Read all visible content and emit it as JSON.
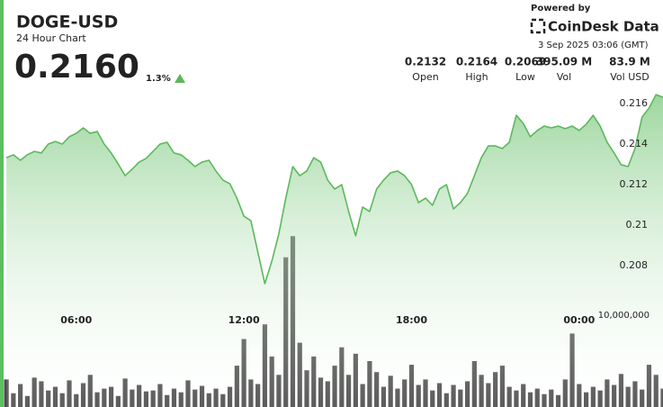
{
  "header": {
    "symbol": "DOGE-USD",
    "subtitle": "24 Hour Chart",
    "price": "0.2160",
    "change": "1.3%",
    "powered_by": "Powered by",
    "brand": "CoinDesk Data",
    "timestamp": "3 Sep 2025 03:06 (GMT)",
    "stats": [
      {
        "value": "0.2132",
        "label": "Open"
      },
      {
        "value": "0.2164",
        "label": "High"
      },
      {
        "value": "0.2069",
        "label": "Low"
      },
      {
        "value": "395.09 M",
        "label": "Vol"
      },
      {
        "value": "83.9 M",
        "label": "Vol USD"
      }
    ]
  },
  "chart_data": {
    "type": "line",
    "x": [
      3.5,
      3.75,
      4,
      4.25,
      4.5,
      4.75,
      5,
      5.25,
      5.5,
      5.75,
      6,
      6.25,
      6.5,
      6.75,
      7,
      7.25,
      7.5,
      7.75,
      8,
      8.25,
      8.5,
      8.75,
      9,
      9.25,
      9.5,
      9.75,
      10,
      10.25,
      10.5,
      10.75,
      11,
      11.25,
      11.5,
      11.75,
      12,
      12.25,
      12.5,
      12.75,
      13,
      13.25,
      13.5,
      13.75,
      14,
      14.25,
      14.5,
      14.75,
      15,
      15.25,
      15.5,
      15.75,
      16,
      16.25,
      16.5,
      16.75,
      17,
      17.25,
      17.5,
      17.75,
      18,
      18.25,
      18.5,
      18.75,
      19,
      19.25,
      19.5,
      19.75,
      20,
      20.25,
      20.5,
      20.75,
      21,
      21.25,
      21.5,
      21.75,
      22,
      22.25,
      22.5,
      22.75,
      23,
      23.25,
      23.5,
      23.75,
      24,
      24.25,
      24.5,
      24.75,
      25,
      25.25,
      25.5,
      25.75,
      26,
      26.25,
      26.5,
      26.75,
      27
    ],
    "xlim": [
      3.4,
      27
    ],
    "xticks": [
      {
        "value": 6,
        "label": "06:00"
      },
      {
        "value": 12,
        "label": "12:00"
      },
      {
        "value": 18,
        "label": "18:00"
      },
      {
        "value": 24,
        "label": "00:00"
      }
    ],
    "ylim": [
      0.201,
      0.217
    ],
    "yticks": [
      0.208,
      0.21,
      0.212,
      0.214,
      0.216
    ],
    "y2lim": [
      0,
      20000000
    ],
    "y2ticks": [
      {
        "value": 10000000,
        "label": "10,000,000"
      }
    ],
    "series": [
      {
        "color": "#5cb85c",
        "values": [
          0.21333,
          0.21347,
          0.2132,
          0.21347,
          0.21364,
          0.21356,
          0.214,
          0.21413,
          0.214,
          0.21436,
          0.21453,
          0.2148,
          0.21453,
          0.21462,
          0.214,
          0.21356,
          0.21302,
          0.21244,
          0.21276,
          0.21311,
          0.21329,
          0.21364,
          0.214,
          0.21409,
          0.21356,
          0.21347,
          0.2132,
          0.21289,
          0.21311,
          0.2132,
          0.21267,
          0.21222,
          0.21204,
          0.21133,
          0.21044,
          0.21022,
          0.20867,
          0.20711,
          0.20822,
          0.20956,
          0.21133,
          0.21289,
          0.21244,
          0.21267,
          0.21333,
          0.21311,
          0.21222,
          0.21178,
          0.212,
          0.21067,
          0.20947,
          0.21089,
          0.21067,
          0.21178,
          0.21222,
          0.21258,
          0.21267,
          0.21244,
          0.212,
          0.21111,
          0.21133,
          0.21098,
          0.21178,
          0.212,
          0.2108,
          0.21111,
          0.21156,
          0.21244,
          0.21333,
          0.21391,
          0.21391,
          0.21378,
          0.21409,
          0.21542,
          0.21502,
          0.21436,
          0.21467,
          0.21489,
          0.2148,
          0.21489,
          0.21476,
          0.21489,
          0.21467,
          0.21498,
          0.21542,
          0.21489,
          0.21409,
          0.21356,
          0.21298,
          0.21289,
          0.21378,
          0.21533,
          0.21578,
          0.21644,
          0.21631
        ]
      },
      {
        "type": "bar",
        "axis": "y2",
        "color": "#4a4a4a",
        "values": [
          3000000,
          1500000,
          2500000,
          1200000,
          3200000,
          2800000,
          1800000,
          2200000,
          1500000,
          2900000,
          1400000,
          2600000,
          3500000,
          1600000,
          2000000,
          2200000,
          1200000,
          3100000,
          1900000,
          2400000,
          1700000,
          1800000,
          2500000,
          1300000,
          2000000,
          1600000,
          2900000,
          1900000,
          2300000,
          1500000,
          2000000,
          1400000,
          2200000,
          4500000,
          7400000,
          3000000,
          2500000,
          9000000,
          5500000,
          3500000,
          16300000,
          18600000,
          7000000,
          4000000,
          5500000,
          3200000,
          2800000,
          4500000,
          6500000,
          3500000,
          5800000,
          2500000,
          5000000,
          3800000,
          2200000,
          3400000,
          2000000,
          3000000,
          4600000,
          2400000,
          3000000,
          1800000,
          2600000,
          1500000,
          2400000,
          1900000,
          2800000,
          5000000,
          3500000,
          2600000,
          3800000,
          4500000,
          2200000,
          1800000,
          2500000,
          1600000,
          2000000,
          1400000,
          1900000,
          1300000,
          3000000,
          8000000,
          2500000,
          1600000,
          2200000,
          1800000,
          3000000,
          2400000,
          3600000,
          2200000,
          2800000,
          1900000,
          4600000,
          3500000,
          2000000
        ]
      }
    ]
  }
}
